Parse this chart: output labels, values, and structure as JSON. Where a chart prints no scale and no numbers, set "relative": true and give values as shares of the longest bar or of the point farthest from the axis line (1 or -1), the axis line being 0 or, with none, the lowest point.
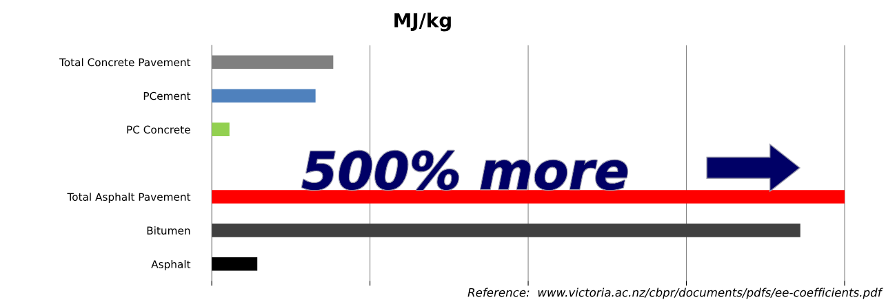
{
  "chart_data": {
    "type": "bar",
    "title": "MJ/kg",
    "orientation": "horizontal",
    "relative": true,
    "categories": [
      "Total Concrete Pavement",
      "PCement",
      "PC Concrete",
      null,
      "Total Asphalt Pavement",
      "Bitumen",
      "Asphalt"
    ],
    "values": [
      0.192,
      0.164,
      0.028,
      null,
      1,
      0.93,
      0.072
    ],
    "colors": [
      "#808080",
      "#4f81bd",
      "#92d050",
      "#ffffff",
      "#ff0000",
      "#404040",
      "#000000"
    ],
    "grid": "x",
    "annotations": [
      "500% more",
      "Reference:  www.victoria.ac.nz/cbpr/documents/pdfs/ee-coefficients.pdf"
    ]
  }
}
